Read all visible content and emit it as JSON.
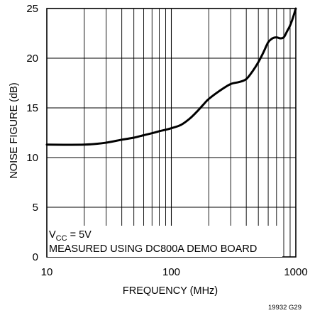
{
  "chart_data": {
    "type": "line",
    "xlabel": "FREQUENCY (MHz)",
    "ylabel": "NOISE FIGURE (dB)",
    "x_scale": "log",
    "xlim": [
      10,
      1000
    ],
    "ylim": [
      0,
      25
    ],
    "grid": true,
    "x_tick_labels": [
      "10",
      "100",
      "1000"
    ],
    "y_tick_labels": [
      "0",
      "5",
      "10",
      "15",
      "20",
      "25"
    ],
    "annotations": {
      "vcc_prefix": "V",
      "vcc_subscript": "CC",
      "vcc_value": " = 5V",
      "measurement_note": "MEASURED USING DC800A DEMO BOARD"
    },
    "figure_code": "19932 G29",
    "series": [
      {
        "x": [
          10,
          20,
          30,
          40,
          50,
          60,
          70,
          80,
          90,
          100,
          120,
          140,
          160,
          180,
          200,
          250,
          300,
          350,
          400,
          450,
          500,
          550,
          600,
          650,
          700,
          750,
          800,
          850,
          900,
          950,
          1000
        ],
        "y": [
          11.3,
          11.3,
          11.5,
          11.8,
          12.0,
          12.25,
          12.45,
          12.65,
          12.8,
          12.95,
          13.3,
          13.9,
          14.6,
          15.3,
          15.9,
          16.8,
          17.4,
          17.6,
          17.9,
          18.7,
          19.6,
          20.6,
          21.6,
          22.0,
          22.1,
          22.0,
          22.1,
          22.7,
          23.3,
          24.1,
          25.0
        ]
      }
    ]
  }
}
